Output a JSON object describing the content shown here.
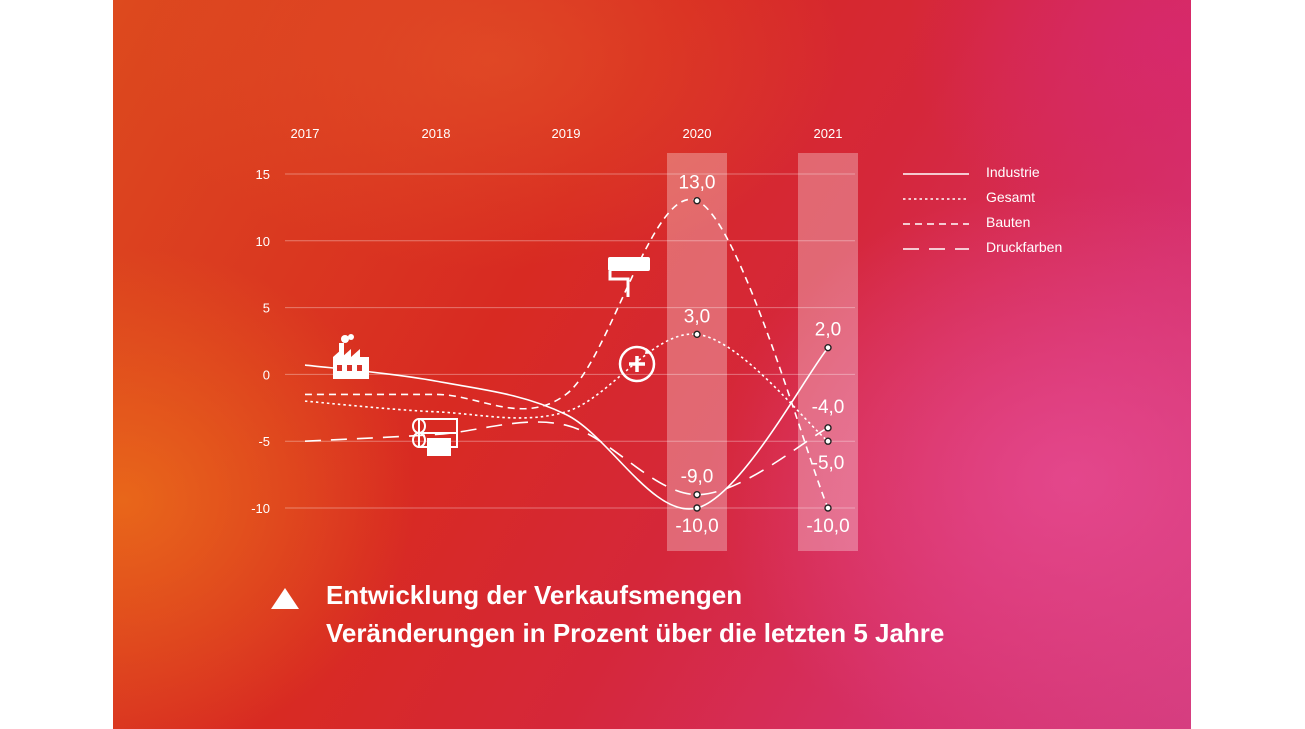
{
  "caption": {
    "title": "Entwicklung der Verkaufsmengen",
    "subtitle": "Veränderungen in Prozent über die letzten 5 Jahre",
    "icon": "triangle-up-icon"
  },
  "chart_data": {
    "type": "line",
    "title": "",
    "xlabel": "",
    "ylabel": "",
    "x": [
      "2017",
      "2018",
      "2019",
      "2020",
      "2021"
    ],
    "ylim": [
      -10,
      15
    ],
    "yticks": [
      "15",
      "10",
      "5",
      "0",
      "-5",
      "-10"
    ],
    "highlighted_x": [
      "2020",
      "2021"
    ],
    "grid": true,
    "legend_position": "right",
    "series": [
      {
        "name": "Industrie",
        "style": "solid",
        "values": [
          0.7,
          -0.5,
          -3.0,
          -10.0,
          2.0
        ]
      },
      {
        "name": "Gesamt",
        "style": "dotted",
        "values": [
          -2.0,
          -2.8,
          -2.8,
          3.0,
          -5.0
        ]
      },
      {
        "name": "Bauten",
        "style": "dashed",
        "values": [
          -1.5,
          -1.5,
          -1.5,
          13.0,
          -10.0
        ]
      },
      {
        "name": "Druckfarben",
        "style": "long-dashed",
        "values": [
          -5.0,
          -4.5,
          -3.8,
          -9.0,
          -4.0
        ]
      }
    ],
    "data_labels": [
      {
        "series": "Bauten",
        "x": "2020",
        "text": "13,0"
      },
      {
        "series": "Gesamt",
        "x": "2020",
        "text": "3,0"
      },
      {
        "series": "Druckfarben",
        "x": "2020",
        "text": "-9,0"
      },
      {
        "series": "Industrie",
        "x": "2020",
        "text": "-10,0"
      },
      {
        "series": "Industrie",
        "x": "2021",
        "text": "2,0"
      },
      {
        "series": "Druckfarben",
        "x": "2021",
        "text": "-4,0"
      },
      {
        "series": "Gesamt",
        "x": "2021",
        "text": "-5,0"
      },
      {
        "series": "Bauten",
        "x": "2021",
        "text": "-10,0"
      }
    ],
    "icons": [
      "factory-icon",
      "paint-roller-icon",
      "plus-circle-icon",
      "printing-rollers-icon"
    ],
    "colors": {
      "line": "#ffffff",
      "highlight": "#ffffff"
    }
  }
}
